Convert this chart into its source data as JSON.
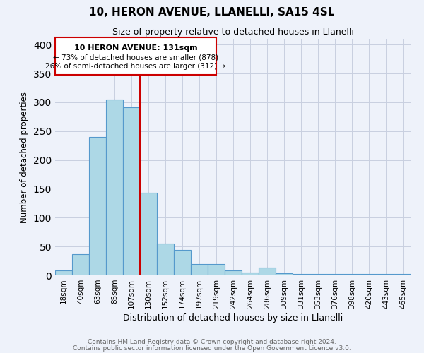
{
  "title": "10, HERON AVENUE, LLANELLI, SA15 4SL",
  "subtitle": "Size of property relative to detached houses in Llanelli",
  "xlabel": "Distribution of detached houses by size in Llanelli",
  "ylabel": "Number of detached properties",
  "bar_labels": [
    "18sqm",
    "40sqm",
    "63sqm",
    "85sqm",
    "107sqm",
    "130sqm",
    "152sqm",
    "174sqm",
    "197sqm",
    "219sqm",
    "242sqm",
    "264sqm",
    "286sqm",
    "309sqm",
    "331sqm",
    "353sqm",
    "376sqm",
    "398sqm",
    "420sqm",
    "443sqm",
    "465sqm"
  ],
  "bar_values": [
    8,
    37,
    240,
    305,
    291,
    143,
    55,
    44,
    20,
    20,
    9,
    5,
    13,
    4,
    2,
    2,
    2,
    2,
    2,
    2,
    2
  ],
  "bar_color": "#add8e6",
  "bar_edge_color": "#5599cc",
  "vline_x_idx": 5,
  "vline_color": "#cc0000",
  "annotation_title": "10 HERON AVENUE: 131sqm",
  "annotation_line1": "← 73% of detached houses are smaller (878)",
  "annotation_line2": "26% of semi-detached houses are larger (312) →",
  "annotation_box_color": "#cc0000",
  "ylim": [
    0,
    410
  ],
  "yticks": [
    0,
    50,
    100,
    150,
    200,
    250,
    300,
    350,
    400
  ],
  "footer1": "Contains HM Land Registry data © Crown copyright and database right 2024.",
  "footer2": "Contains public sector information licensed under the Open Government Licence v3.0.",
  "bg_color": "#eef2fa",
  "grid_color": "#c8cfe0"
}
